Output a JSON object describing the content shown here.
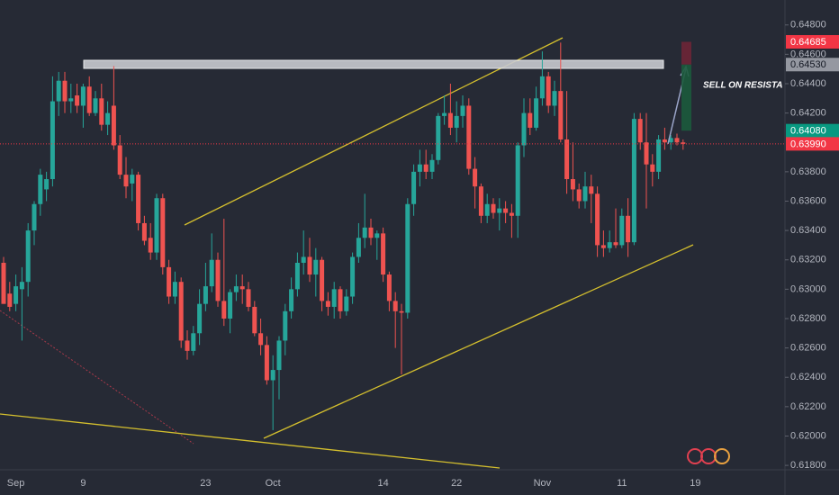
{
  "chart_data": {
    "type": "candlestick",
    "annotation": "SELL ON RESISTA",
    "categories": [
      null,
      null,
      "Sep",
      null,
      null,
      null,
      null,
      null,
      null,
      null,
      null,
      null,
      null,
      "9",
      null,
      null,
      null,
      null,
      null,
      null,
      null,
      null,
      null,
      null,
      null,
      null,
      null,
      null,
      null,
      null,
      null,
      null,
      null,
      "23",
      null,
      null,
      null,
      null,
      null,
      null,
      null,
      null,
      null,
      null,
      "Oct",
      null,
      null,
      null,
      null,
      null,
      null,
      null,
      null,
      null,
      null,
      null,
      null,
      null,
      null,
      null,
      null,
      null,
      "14",
      null,
      null,
      null,
      null,
      null,
      null,
      null,
      null,
      null,
      null,
      null,
      "22",
      null,
      null,
      null,
      null,
      null,
      null,
      null,
      null,
      null,
      null,
      null,
      null,
      null,
      "Nov",
      null,
      null,
      null,
      null,
      null,
      null,
      null,
      null,
      null,
      null,
      null,
      null,
      "11",
      null,
      null,
      null,
      null,
      null,
      null,
      null,
      null,
      null,
      null,
      null,
      "19"
    ],
    "open": [
      0.6318,
      0.6297,
      0.629,
      0.63,
      0.6305,
      0.634,
      0.6358,
      0.6368,
      0.6375,
      0.6428,
      0.6442,
      0.6428,
      0.6432,
      0.6425,
      0.6438,
      0.642,
      0.643,
      0.6412,
      0.6425,
      0.6398,
      0.6378,
      0.6372,
      0.6378,
      0.6345,
      0.6335,
      0.6325,
      0.6362,
      0.6315,
      0.6295,
      0.6305,
      0.6265,
      0.6258,
      0.627,
      0.629,
      0.6302,
      0.632,
      0.6292,
      0.628,
      0.6298,
      0.6302,
      0.63,
      0.6288,
      0.627,
      0.6262,
      0.6238,
      0.6245,
      0.6265,
      0.6285,
      0.63,
      0.6318,
      0.6322,
      0.631,
      0.632,
      0.6292,
      0.6288,
      0.63,
      0.6285,
      0.6295,
      0.6322,
      0.6335,
      0.6342,
      0.6335,
      0.6338,
      0.631,
      0.6292,
      0.6285,
      0.6284,
      0.6358,
      0.638,
      0.6385,
      0.638,
      0.6388,
      0.6418,
      0.642,
      0.641,
      0.6418,
      0.6425,
      0.6382,
      0.637,
      0.635,
      0.6358,
      0.6352,
      0.6355,
      0.6352,
      0.635,
      0.6398,
      0.642,
      0.641,
      0.643,
      0.6445,
      0.6425,
      0.6435,
      0.6402,
      0.6375,
      0.6368,
      0.636,
      0.637,
      0.6365,
      0.633,
      0.6328,
      0.6332,
      0.633,
      0.635,
      0.6332,
      0.6416,
      0.64,
      0.6385,
      0.638,
      0.6402,
      0.64,
      0.6403,
      0.64,
      null,
      null
    ],
    "high": [
      0.6322,
      0.6305,
      0.631,
      0.6315,
      0.6345,
      0.636,
      0.6382,
      0.638,
      0.6445,
      0.6448,
      0.6448,
      0.644,
      0.644,
      0.644,
      0.6445,
      0.6435,
      0.644,
      0.6428,
      0.6452,
      0.6405,
      0.639,
      0.6382,
      0.638,
      0.635,
      0.6345,
      0.6365,
      0.6365,
      0.632,
      0.6312,
      0.6308,
      0.6272,
      0.6275,
      0.63,
      0.6318,
      0.6338,
      0.6325,
      0.6348,
      0.63,
      0.631,
      0.631,
      0.6305,
      0.6292,
      0.628,
      0.6268,
      0.6255,
      0.6268,
      0.629,
      0.6308,
      0.6325,
      0.634,
      0.6335,
      0.6328,
      0.6322,
      0.6298,
      0.6305,
      0.6302,
      0.63,
      0.6325,
      0.6345,
      0.6365,
      0.6348,
      0.634,
      0.6342,
      0.6312,
      0.6298,
      0.629,
      0.6362,
      0.6385,
      0.6395,
      0.6395,
      0.6392,
      0.642,
      0.6432,
      0.644,
      0.6428,
      0.6432,
      0.643,
      0.639,
      0.6372,
      0.6365,
      0.6362,
      0.6362,
      0.636,
      0.6358,
      0.64,
      0.643,
      0.643,
      0.6438,
      0.6462,
      0.6448,
      0.6442,
      0.6468,
      0.6435,
      0.64,
      0.6372,
      0.638,
      0.6378,
      0.637,
      0.634,
      0.634,
      0.6355,
      0.6355,
      0.6362,
      0.642,
      0.642,
      0.642,
      0.6392,
      0.6405,
      0.641,
      0.6405,
      0.6406,
      0.6402,
      null,
      null
    ],
    "low": [
      0.629,
      0.6285,
      0.6285,
      0.6265,
      0.6295,
      0.633,
      0.635,
      0.636,
      0.637,
      0.6418,
      0.642,
      0.642,
      0.642,
      0.641,
      0.6418,
      0.6418,
      0.6408,
      0.6405,
      0.6395,
      0.6375,
      0.6362,
      0.636,
      0.634,
      0.633,
      0.632,
      0.632,
      0.631,
      0.629,
      0.629,
      0.626,
      0.6252,
      0.6255,
      0.6262,
      0.6285,
      0.6298,
      0.6288,
      0.6275,
      0.627,
      0.6292,
      0.629,
      0.6285,
      0.6268,
      0.6255,
      0.6235,
      0.6204,
      0.6225,
      0.6255,
      0.628,
      0.6295,
      0.631,
      0.6305,
      0.6295,
      0.6285,
      0.6282,
      0.628,
      0.628,
      0.6282,
      0.629,
      0.6318,
      0.6328,
      0.633,
      0.632,
      0.6305,
      0.6285,
      0.626,
      0.6242,
      0.628,
      0.635,
      0.637,
      0.6375,
      0.6375,
      0.6385,
      0.6412,
      0.6405,
      0.64,
      0.641,
      0.6378,
      0.6355,
      0.6345,
      0.6345,
      0.6348,
      0.634,
      0.6345,
      0.6335,
      0.6335,
      0.639,
      0.6405,
      0.6408,
      0.6425,
      0.642,
      0.6418,
      0.64,
      0.6365,
      0.636,
      0.6355,
      0.6355,
      0.6345,
      0.6322,
      0.6322,
      0.6325,
      0.6328,
      0.6328,
      0.6322,
      0.633,
      0.6395,
      0.6355,
      0.637,
      0.6375,
      0.6395,
      0.6395,
      0.6398,
      0.6395,
      null,
      null
    ],
    "close": [
      0.629,
      0.6288,
      0.6302,
      0.6305,
      0.634,
      0.6358,
      0.6378,
      0.6375,
      0.6428,
      0.6442,
      0.6428,
      0.643,
      0.6425,
      0.6438,
      0.642,
      0.643,
      0.6412,
      0.642,
      0.6398,
      0.6378,
      0.637,
      0.6378,
      0.6345,
      0.6333,
      0.6325,
      0.6362,
      0.6315,
      0.6295,
      0.6305,
      0.6265,
      0.6258,
      0.627,
      0.629,
      0.6302,
      0.632,
      0.6292,
      0.628,
      0.6298,
      0.6302,
      0.63,
      0.6288,
      0.627,
      0.6262,
      0.6238,
      0.6245,
      0.6265,
      0.6285,
      0.63,
      0.6318,
      0.6322,
      0.631,
      0.632,
      0.6292,
      0.6288,
      0.63,
      0.6285,
      0.6295,
      0.6322,
      0.6335,
      0.6342,
      0.6335,
      0.6338,
      0.631,
      0.6292,
      0.6285,
      0.6284,
      0.6358,
      0.638,
      0.6385,
      0.638,
      0.6388,
      0.6418,
      0.642,
      0.641,
      0.6418,
      0.6425,
      0.6382,
      0.637,
      0.635,
      0.6358,
      0.6352,
      0.6355,
      0.6352,
      0.635,
      0.6398,
      0.642,
      0.641,
      0.643,
      0.6445,
      0.6425,
      0.6435,
      0.6402,
      0.6375,
      0.6368,
      0.636,
      0.637,
      0.6365,
      0.633,
      0.6328,
      0.6332,
      0.633,
      0.635,
      0.6332,
      0.6416,
      0.64,
      0.6385,
      0.638,
      0.6402,
      0.64,
      0.6403,
      0.64,
      0.6399,
      null,
      null
    ],
    "up_color": "#26a69a",
    "down_color": "#ef5350",
    "ylim": [
      0.6177,
      0.6497
    ],
    "yticks": [
      {
        "value": 0.648,
        "label": "0.64800"
      },
      {
        "value": 0.646,
        "label": "0.64600"
      },
      {
        "value": 0.644,
        "label": "0.64400"
      },
      {
        "value": 0.642,
        "label": "0.64200"
      },
      {
        "value": 0.638,
        "label": "0.63800"
      },
      {
        "value": 0.636,
        "label": "0.63600"
      },
      {
        "value": 0.634,
        "label": "0.63400"
      },
      {
        "value": 0.632,
        "label": "0.63200"
      },
      {
        "value": 0.63,
        "label": "0.63000"
      },
      {
        "value": 0.628,
        "label": "0.62800"
      },
      {
        "value": 0.626,
        "label": "0.62600"
      },
      {
        "value": 0.624,
        "label": "0.62400"
      },
      {
        "value": 0.622,
        "label": "0.62200"
      },
      {
        "value": 0.62,
        "label": "0.62000"
      },
      {
        "value": 0.618,
        "label": "0.61800"
      }
    ],
    "grid": false,
    "price_labels": [
      {
        "value": 0.64685,
        "label": "0.64685",
        "color": "#f23645"
      },
      {
        "value": 0.6453,
        "label": "0.64530",
        "color": "#9598a1"
      },
      {
        "value": 0.6408,
        "label": "0.64080",
        "color": "#089981"
      },
      {
        "value": 0.6399,
        "label": "0.63990",
        "color": "#f23645"
      }
    ]
  }
}
